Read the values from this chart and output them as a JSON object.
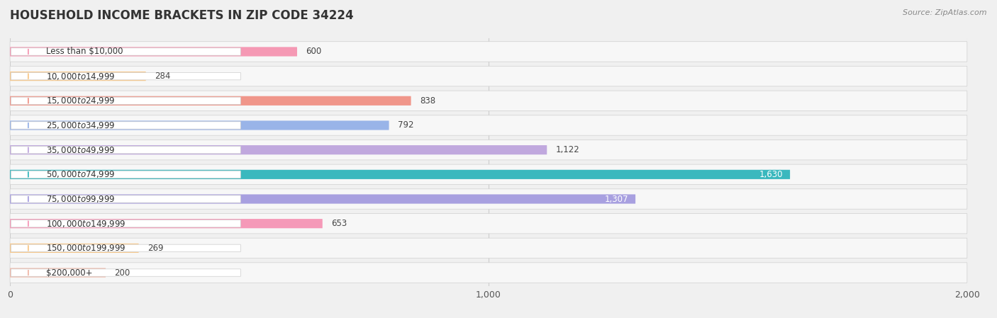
{
  "title": "HOUSEHOLD INCOME BRACKETS IN ZIP CODE 34224",
  "source": "Source: ZipAtlas.com",
  "categories": [
    "Less than $10,000",
    "$10,000 to $14,999",
    "$15,000 to $24,999",
    "$25,000 to $34,999",
    "$35,000 to $49,999",
    "$50,000 to $74,999",
    "$75,000 to $99,999",
    "$100,000 to $149,999",
    "$150,000 to $199,999",
    "$200,000+"
  ],
  "values": [
    600,
    284,
    838,
    792,
    1122,
    1630,
    1307,
    653,
    269,
    200
  ],
  "bar_colors": [
    "#f599b4",
    "#f9c98a",
    "#f0968a",
    "#99b4e8",
    "#c0a8de",
    "#3ab8be",
    "#a8a0e0",
    "#f599b8",
    "#f9c98a",
    "#f0b8a8"
  ],
  "row_bg_color": "#ebebeb",
  "bar_bg_color": "#f7f7f7",
  "xlim": [
    0,
    2000
  ],
  "xticks": [
    0,
    1000,
    2000
  ],
  "background_color": "#f0f0f0",
  "title_fontsize": 12,
  "label_fontsize": 8.5,
  "value_fontsize": 8.5
}
